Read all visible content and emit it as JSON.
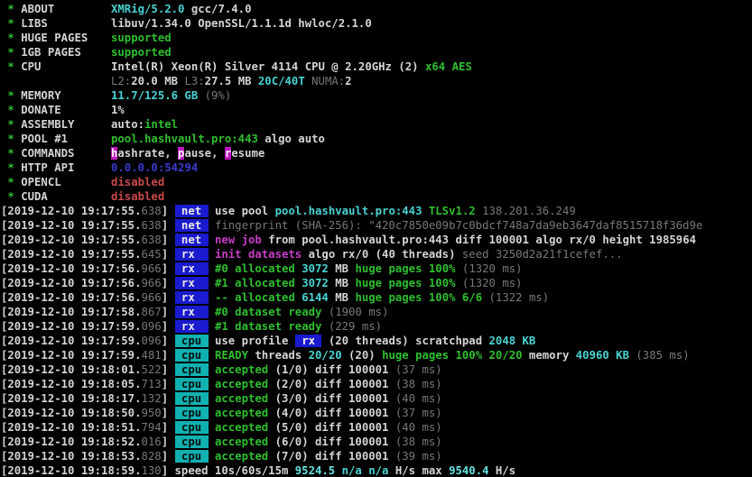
{
  "palette": {
    "w": {
      "color": "#d4d4d4",
      "bold": true
    },
    "gy": {
      "color": "#787878",
      "bold": false
    },
    "gn": {
      "color": "#2fbf2f",
      "bold": true
    },
    "cy": {
      "color": "#4ad2d2",
      "bold": true
    },
    "cyb": {
      "color": "#66e2e2",
      "bold": true
    },
    "mg": {
      "color": "#c53dc5",
      "bold": true
    },
    "rd": {
      "color": "#c94a4a",
      "bold": true
    },
    "bl": {
      "color": "#3a3ace",
      "bold": true
    },
    "hk": {
      "color": "#f2f2f2",
      "bg": "#c217c2",
      "bold": true
    },
    "bnet": {
      "color": "#e8e8e8",
      "bg": "#1a1ace",
      "bold": true
    },
    "bcpu": {
      "color": "#001010",
      "bg": "#12b1b1",
      "bold": true
    },
    "brx": {
      "color": "#f2f2f2",
      "bg": "#1a1ace",
      "bold": true
    }
  },
  "badge_names": {
    "bnet": "net-tag-badge",
    "bcpu": "cpu-tag-badge",
    "brx": "rx-profile-badge",
    "hk": "hotkey-highlight"
  },
  "terminal": {
    "bullet": "*",
    "info_rows": [
      {
        "label": "ABOUT",
        "segments": [
          [
            "cy",
            "XMRig/5.2.0"
          ],
          [
            "w",
            " gcc/7.4.0"
          ]
        ]
      },
      {
        "label": "LIBS",
        "segments": [
          [
            "w",
            "libuv/1.34.0 OpenSSL/1.1.1d hwloc/2.1.0"
          ]
        ]
      },
      {
        "label": "HUGE PAGES",
        "segments": [
          [
            "gn",
            "supported"
          ]
        ]
      },
      {
        "label": "1GB PAGES",
        "segments": [
          [
            "gn",
            "supported"
          ]
        ]
      },
      {
        "label": "CPU",
        "segments": [
          [
            "w",
            "Intel(R) Xeon(R) Silver 4114 CPU @ 2.20GHz (2) "
          ],
          [
            "gn",
            "x64 AES"
          ]
        ]
      },
      {
        "label": "",
        "segments": [
          [
            "gy",
            "L2:"
          ],
          [
            "w",
            "20.0 MB "
          ],
          [
            "gy",
            "L3:"
          ],
          [
            "w",
            "27.5 MB "
          ],
          [
            "cy",
            "20C/40T "
          ],
          [
            "gy",
            "NUMA:"
          ],
          [
            "w",
            "2"
          ]
        ]
      },
      {
        "label": "MEMORY",
        "segments": [
          [
            "cy",
            "11.7/125.6 GB "
          ],
          [
            "gy",
            "(9%)"
          ]
        ]
      },
      {
        "label": "DONATE",
        "segments": [
          [
            "w",
            "1%"
          ]
        ]
      },
      {
        "label": "ASSEMBLY",
        "segments": [
          [
            "w",
            "auto:"
          ],
          [
            "gn",
            "intel"
          ]
        ]
      },
      {
        "label": "POOL #1",
        "segments": [
          [
            "gn",
            "pool.hashvault.pro:443"
          ],
          [
            "w",
            " algo auto"
          ]
        ]
      },
      {
        "label": "COMMANDS",
        "segments": [
          [
            "hk",
            "h"
          ],
          [
            "w",
            "ashrate, "
          ],
          [
            "hk",
            "p"
          ],
          [
            "w",
            "ause, "
          ],
          [
            "hk",
            "r"
          ],
          [
            "w",
            "esume"
          ]
        ]
      },
      {
        "label": "HTTP API",
        "segments": [
          [
            "bl",
            "0.0.0.0:54294"
          ]
        ]
      },
      {
        "label": "OPENCL",
        "segments": [
          [
            "rd",
            "disabled"
          ]
        ]
      },
      {
        "label": "CUDA",
        "segments": [
          [
            "rd",
            "disabled"
          ]
        ]
      }
    ],
    "log_rows": [
      [
        [
          "w",
          "[2019-12-10 19:17:55."
        ],
        [
          "gy",
          "638"
        ],
        [
          "w",
          "] "
        ],
        [
          "bnet",
          " net "
        ],
        [
          "w",
          " use pool "
        ],
        [
          "cy",
          "pool.hashvault.pro:443 "
        ],
        [
          "gn",
          "TLSv1.2 "
        ],
        [
          "gy",
          "138.201.36.249"
        ]
      ],
      [
        [
          "w",
          "[2019-12-10 19:17:55."
        ],
        [
          "gy",
          "638"
        ],
        [
          "w",
          "] "
        ],
        [
          "bnet",
          " net "
        ],
        [
          "gy",
          " fingerprint (SHA-256): \"420c7850e09b7c0bdcf748a7da9eb3647daf8515718f36d9e"
        ]
      ],
      [
        [
          "w",
          "[2019-12-10 19:17:55."
        ],
        [
          "gy",
          "638"
        ],
        [
          "w",
          "] "
        ],
        [
          "bnet",
          " net "
        ],
        [
          "mg",
          " new job "
        ],
        [
          "w",
          "from pool.hashvault.pro:443 diff 100001 algo rx/0 height 1985964"
        ]
      ],
      [
        [
          "w",
          "[2019-12-10 19:17:55."
        ],
        [
          "gy",
          "645"
        ],
        [
          "w",
          "] "
        ],
        [
          "bnet",
          " rx  "
        ],
        [
          "mg",
          " init datasets "
        ],
        [
          "w",
          "algo rx/0 (40 threads) "
        ],
        [
          "gy",
          "seed 3250d2a21f1cefef..."
        ]
      ],
      [
        [
          "w",
          "[2019-12-10 19:17:56."
        ],
        [
          "gy",
          "966"
        ],
        [
          "w",
          "] "
        ],
        [
          "bnet",
          " rx  "
        ],
        [
          "gn",
          " #0 allocated "
        ],
        [
          "cy",
          "3072 "
        ],
        [
          "w",
          "MB "
        ],
        [
          "gn",
          "huge pages 100% "
        ],
        [
          "gy",
          "(1320 ms)"
        ]
      ],
      [
        [
          "w",
          "[2019-12-10 19:17:56."
        ],
        [
          "gy",
          "966"
        ],
        [
          "w",
          "] "
        ],
        [
          "bnet",
          " rx  "
        ],
        [
          "gn",
          " #1 allocated "
        ],
        [
          "cy",
          "3072 "
        ],
        [
          "w",
          "MB "
        ],
        [
          "gn",
          "huge pages 100% "
        ],
        [
          "gy",
          "(1320 ms)"
        ]
      ],
      [
        [
          "w",
          "[2019-12-10 19:17:56."
        ],
        [
          "gy",
          "966"
        ],
        [
          "w",
          "] "
        ],
        [
          "bnet",
          " rx  "
        ],
        [
          "gn",
          " -- allocated "
        ],
        [
          "cy",
          "6144 "
        ],
        [
          "w",
          "MB "
        ],
        [
          "gn",
          "huge pages 100% 6/6 "
        ],
        [
          "gy",
          "(1322 ms)"
        ]
      ],
      [
        [
          "w",
          "[2019-12-10 19:17:58."
        ],
        [
          "gy",
          "867"
        ],
        [
          "w",
          "] "
        ],
        [
          "bnet",
          " rx  "
        ],
        [
          "gn",
          " #0 dataset ready "
        ],
        [
          "gy",
          "(1900 ms)"
        ]
      ],
      [
        [
          "w",
          "[2019-12-10 19:17:59."
        ],
        [
          "gy",
          "096"
        ],
        [
          "w",
          "] "
        ],
        [
          "bnet",
          " rx  "
        ],
        [
          "gn",
          " #1 dataset ready "
        ],
        [
          "gy",
          "(229 ms)"
        ]
      ],
      [
        [
          "w",
          "[2019-12-10 19:17:59."
        ],
        [
          "gy",
          "096"
        ],
        [
          "w",
          "] "
        ],
        [
          "bcpu",
          " cpu "
        ],
        [
          "w",
          " use profile "
        ],
        [
          "brx",
          " rx "
        ],
        [
          "w",
          " (20 threads) scratchpad "
        ],
        [
          "cy",
          "2048 KB"
        ]
      ],
      [
        [
          "w",
          "[2019-12-10 19:17:59."
        ],
        [
          "gy",
          "481"
        ],
        [
          "w",
          "] "
        ],
        [
          "bcpu",
          " cpu "
        ],
        [
          "gn",
          " READY "
        ],
        [
          "w",
          "threads "
        ],
        [
          "cy",
          "20/20 "
        ],
        [
          "w",
          "(20) "
        ],
        [
          "gn",
          "huge pages 100% 20/20 "
        ],
        [
          "w",
          "memory "
        ],
        [
          "cy",
          "40960 KB "
        ],
        [
          "gy",
          "(385 ms)"
        ]
      ],
      [
        [
          "w",
          "[2019-12-10 19:18:01."
        ],
        [
          "gy",
          "522"
        ],
        [
          "w",
          "] "
        ],
        [
          "bcpu",
          " cpu "
        ],
        [
          "gn",
          " accepted "
        ],
        [
          "w",
          "(1/0) diff 100001 "
        ],
        [
          "gy",
          "(37 ms)"
        ]
      ],
      [
        [
          "w",
          "[2019-12-10 19:18:05."
        ],
        [
          "gy",
          "713"
        ],
        [
          "w",
          "] "
        ],
        [
          "bcpu",
          " cpu "
        ],
        [
          "gn",
          " accepted "
        ],
        [
          "w",
          "(2/0) diff 100001 "
        ],
        [
          "gy",
          "(38 ms)"
        ]
      ],
      [
        [
          "w",
          "[2019-12-10 19:18:17."
        ],
        [
          "gy",
          "132"
        ],
        [
          "w",
          "] "
        ],
        [
          "bcpu",
          " cpu "
        ],
        [
          "gn",
          " accepted "
        ],
        [
          "w",
          "(3/0) diff 100001 "
        ],
        [
          "gy",
          "(40 ms)"
        ]
      ],
      [
        [
          "w",
          "[2019-12-10 19:18:50."
        ],
        [
          "gy",
          "950"
        ],
        [
          "w",
          "] "
        ],
        [
          "bcpu",
          " cpu "
        ],
        [
          "gn",
          " accepted "
        ],
        [
          "w",
          "(4/0) diff 100001 "
        ],
        [
          "gy",
          "(37 ms)"
        ]
      ],
      [
        [
          "w",
          "[2019-12-10 19:18:51."
        ],
        [
          "gy",
          "794"
        ],
        [
          "w",
          "] "
        ],
        [
          "bcpu",
          " cpu "
        ],
        [
          "gn",
          " accepted "
        ],
        [
          "w",
          "(5/0) diff 100001 "
        ],
        [
          "gy",
          "(40 ms)"
        ]
      ],
      [
        [
          "w",
          "[2019-12-10 19:18:52."
        ],
        [
          "gy",
          "016"
        ],
        [
          "w",
          "] "
        ],
        [
          "bcpu",
          " cpu "
        ],
        [
          "gn",
          " accepted "
        ],
        [
          "w",
          "(6/0) diff 100001 "
        ],
        [
          "gy",
          "(38 ms)"
        ]
      ],
      [
        [
          "w",
          "[2019-12-10 19:18:53."
        ],
        [
          "gy",
          "828"
        ],
        [
          "w",
          "] "
        ],
        [
          "bcpu",
          " cpu "
        ],
        [
          "gn",
          " accepted "
        ],
        [
          "w",
          "(7/0) diff 100001 "
        ],
        [
          "gy",
          "(39 ms)"
        ]
      ],
      [
        [
          "w",
          "[2019-12-10 19:18:59."
        ],
        [
          "gy",
          "130"
        ],
        [
          "w",
          "] "
        ],
        [
          "w",
          "speed 10s/60s/15m "
        ],
        [
          "cyb",
          "9524.5 "
        ],
        [
          "cy",
          "n/a n/a "
        ],
        [
          "w",
          "H/s max "
        ],
        [
          "cyb",
          "9540.4 "
        ],
        [
          "w",
          "H/s"
        ]
      ]
    ]
  }
}
